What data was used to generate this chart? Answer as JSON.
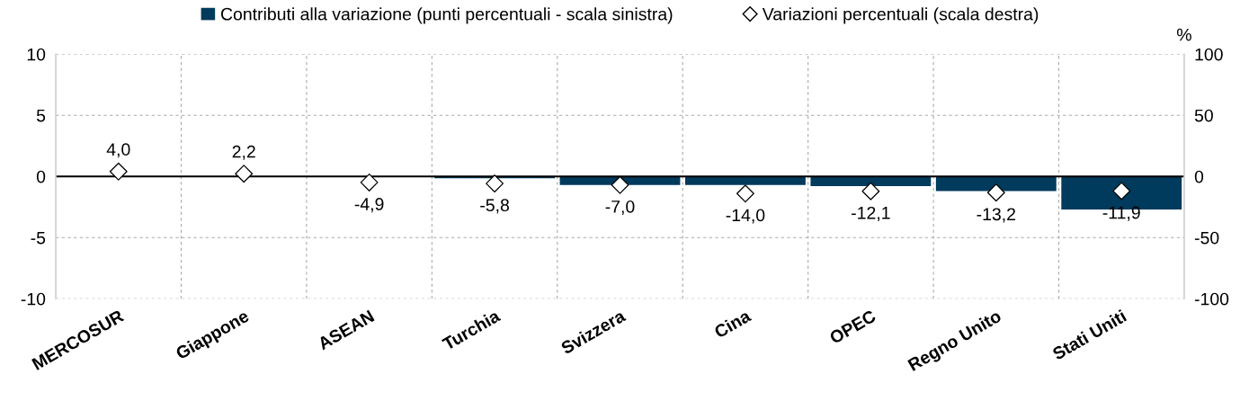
{
  "chart_data": {
    "type": "bar",
    "categories": [
      "MERCOSUR",
      "Giappone",
      "ASEAN",
      "Turchia",
      "Svizzera",
      "Cina",
      "OPEC",
      "Regno Unito",
      "Stati Uniti"
    ],
    "series": [
      {
        "name": "Contributi alla variazione (punti percentuali - scala sinistra)",
        "color": "#003a5c",
        "values": [
          0,
          0,
          0,
          -0.15,
          -0.7,
          -0.7,
          -0.8,
          -1.2,
          -2.7
        ]
      },
      {
        "name": "Variazioni percentuali (scala destra)",
        "type": "scatter",
        "axis": "y2",
        "color": "#ffffff",
        "marker": "diamond",
        "values": [
          4.0,
          2.2,
          -4.9,
          -5.8,
          -7.0,
          -14.0,
          -12.1,
          -13.2,
          -11.9
        ],
        "value_labels": [
          "4,0",
          "2,2",
          "-4,9",
          "-5,8",
          "-7,0",
          "-14,0",
          "-12,1",
          "-13,2",
          "-11,9"
        ]
      }
    ],
    "y2label": "%",
    "ylim": [
      -10,
      10
    ],
    "yticks": [
      -10,
      -5,
      0,
      5,
      10
    ],
    "y2lim": [
      -100,
      100
    ],
    "y2ticks": [
      -100,
      -50,
      0,
      50,
      100
    ],
    "grid": true,
    "legend": "top"
  }
}
